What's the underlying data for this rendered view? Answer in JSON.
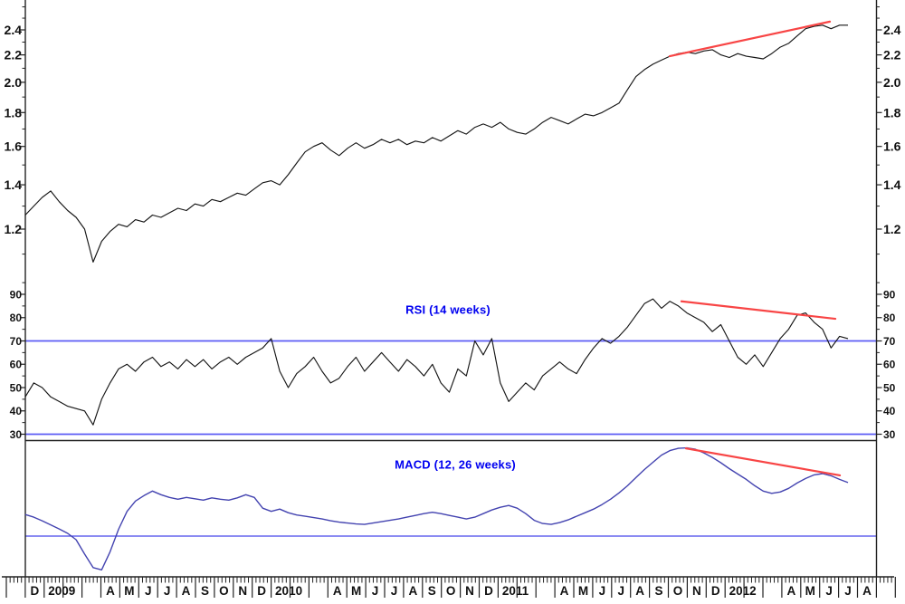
{
  "colors": {
    "background": "#ffffff",
    "axis": "#222222",
    "tick_text": "#111111",
    "blue_level_line": "#5b5bf5",
    "zero_line": "#4646ea",
    "trendline_red": "#f84545",
    "title_blue": "#0000f0",
    "price_line": "#161616",
    "rsi_line": "#161616",
    "macd_line": "#4343b0"
  },
  "x_axis": {
    "month_labels": [
      "",
      "D",
      "2009",
      "",
      "",
      "A",
      "M",
      "J",
      "J",
      "A",
      "S",
      "O",
      "N",
      "D",
      "2010",
      "",
      "",
      "A",
      "M",
      "J",
      "J",
      "A",
      "S",
      "O",
      "N",
      "D",
      "2011",
      "",
      "",
      "A",
      "M",
      "J",
      "J",
      "A",
      "S",
      "O",
      "N",
      "D",
      "2012",
      "",
      "",
      "A",
      "M",
      "J",
      "J",
      "A"
    ],
    "year_labels": [
      "2009",
      "2010",
      "2011",
      "2012"
    ],
    "weekly_minor_ticks": true
  },
  "chart_data": [
    {
      "type": "line",
      "panel": "price",
      "title": "",
      "yscale": "log",
      "yticks": [
        1.2,
        1.4,
        1.6,
        1.8,
        2.0,
        2.2,
        2.4
      ],
      "yticks_minor": [
        1.1,
        1.3,
        1.5,
        1.7,
        1.9,
        2.1,
        2.3,
        2.5,
        2.6
      ],
      "ylim": [
        1.02,
        2.62
      ],
      "series": [
        {
          "name": "price",
          "color": "#161616",
          "values": [
            1.26,
            1.3,
            1.34,
            1.37,
            1.32,
            1.28,
            1.25,
            1.2,
            1.07,
            1.15,
            1.19,
            1.22,
            1.21,
            1.24,
            1.23,
            1.26,
            1.25,
            1.27,
            1.29,
            1.28,
            1.31,
            1.3,
            1.33,
            1.32,
            1.34,
            1.36,
            1.35,
            1.38,
            1.41,
            1.42,
            1.4,
            1.45,
            1.51,
            1.57,
            1.6,
            1.62,
            1.58,
            1.55,
            1.59,
            1.62,
            1.59,
            1.61,
            1.64,
            1.62,
            1.64,
            1.61,
            1.63,
            1.62,
            1.65,
            1.63,
            1.66,
            1.69,
            1.67,
            1.71,
            1.73,
            1.71,
            1.74,
            1.7,
            1.68,
            1.67,
            1.7,
            1.74,
            1.77,
            1.75,
            1.73,
            1.76,
            1.79,
            1.78,
            1.8,
            1.83,
            1.86,
            1.95,
            2.04,
            2.09,
            2.13,
            2.16,
            2.19,
            2.21,
            2.22,
            2.21,
            2.23,
            2.24,
            2.2,
            2.18,
            2.21,
            2.19,
            2.18,
            2.17,
            2.21,
            2.26,
            2.29,
            2.35,
            2.41,
            2.43,
            2.44,
            2.41,
            2.44,
            2.44
          ]
        }
      ],
      "trendlines": [
        {
          "name": "price-resistance",
          "color": "#f84545",
          "x1_month": 35.07,
          "v1": 2.19,
          "x2_month": 43.54,
          "v2": 2.47
        }
      ]
    },
    {
      "type": "line",
      "panel": "rsi",
      "title": "RSI (14 weeks)",
      "yscale": "linear",
      "yticks": [
        30,
        40,
        50,
        60,
        70,
        80,
        90
      ],
      "yticks_minor": [
        35,
        45,
        55,
        65,
        75,
        85,
        95
      ],
      "ylim": [
        28,
        97
      ],
      "hlines": [
        70,
        30
      ],
      "series": [
        {
          "name": "rsi",
          "color": "#161616",
          "values": [
            46,
            52,
            50,
            46,
            44,
            42,
            41,
            40,
            34,
            45,
            52,
            58,
            60,
            57,
            61,
            63,
            59,
            61,
            58,
            62,
            59,
            62,
            58,
            61,
            63,
            60,
            63,
            65,
            67,
            71,
            57,
            50,
            56,
            59,
            63,
            57,
            52,
            54,
            59,
            63,
            57,
            61,
            65,
            61,
            57,
            62,
            59,
            55,
            60,
            52,
            48,
            58,
            55,
            70,
            64,
            71,
            52,
            44,
            48,
            52,
            49,
            55,
            58,
            61,
            58,
            56,
            62,
            67,
            71,
            69,
            72,
            76,
            81,
            86,
            88,
            84,
            87,
            85,
            82,
            80,
            78,
            74,
            77,
            70,
            63,
            60,
            64,
            59,
            65,
            71,
            75,
            81,
            82,
            78,
            75,
            67,
            72,
            71
          ]
        }
      ],
      "trendlines": [
        {
          "name": "rsi-divergence",
          "color": "#f84545",
          "x1_month": 35.69,
          "v1": 87,
          "x2_month": 43.83,
          "v2": 79.5
        }
      ]
    },
    {
      "type": "line",
      "panel": "macd",
      "title": "MACD (12, 26 weeks)",
      "yscale": "linear",
      "yticks": [],
      "ylim": [
        -0.09,
        0.21
      ],
      "hlines": [
        0
      ],
      "series": [
        {
          "name": "macd",
          "color": "#4343b0",
          "values": [
            0.048,
            0.042,
            0.034,
            0.025,
            0.016,
            0.006,
            -0.008,
            -0.04,
            -0.07,
            -0.075,
            -0.035,
            0.015,
            0.055,
            0.078,
            0.09,
            0.1,
            0.092,
            0.086,
            0.082,
            0.086,
            0.083,
            0.08,
            0.085,
            0.082,
            0.08,
            0.085,
            0.092,
            0.086,
            0.062,
            0.055,
            0.06,
            0.052,
            0.047,
            0.044,
            0.041,
            0.038,
            0.034,
            0.031,
            0.029,
            0.027,
            0.026,
            0.029,
            0.032,
            0.035,
            0.038,
            0.042,
            0.046,
            0.05,
            0.053,
            0.05,
            0.046,
            0.042,
            0.038,
            0.042,
            0.05,
            0.058,
            0.064,
            0.068,
            0.062,
            0.05,
            0.035,
            0.028,
            0.026,
            0.03,
            0.036,
            0.044,
            0.052,
            0.06,
            0.07,
            0.082,
            0.096,
            0.112,
            0.13,
            0.148,
            0.164,
            0.18,
            0.19,
            0.195,
            0.196,
            0.193,
            0.185,
            0.175,
            0.163,
            0.15,
            0.138,
            0.126,
            0.112,
            0.1,
            0.095,
            0.098,
            0.106,
            0.118,
            0.128,
            0.136,
            0.139,
            0.134,
            0.126,
            0.119
          ]
        }
      ],
      "trendlines": [
        {
          "name": "macd-divergence",
          "color": "#f84545",
          "x1_month": 35.93,
          "v1": 0.195,
          "x2_month": 44.07,
          "v2": 0.135
        }
      ]
    }
  ]
}
